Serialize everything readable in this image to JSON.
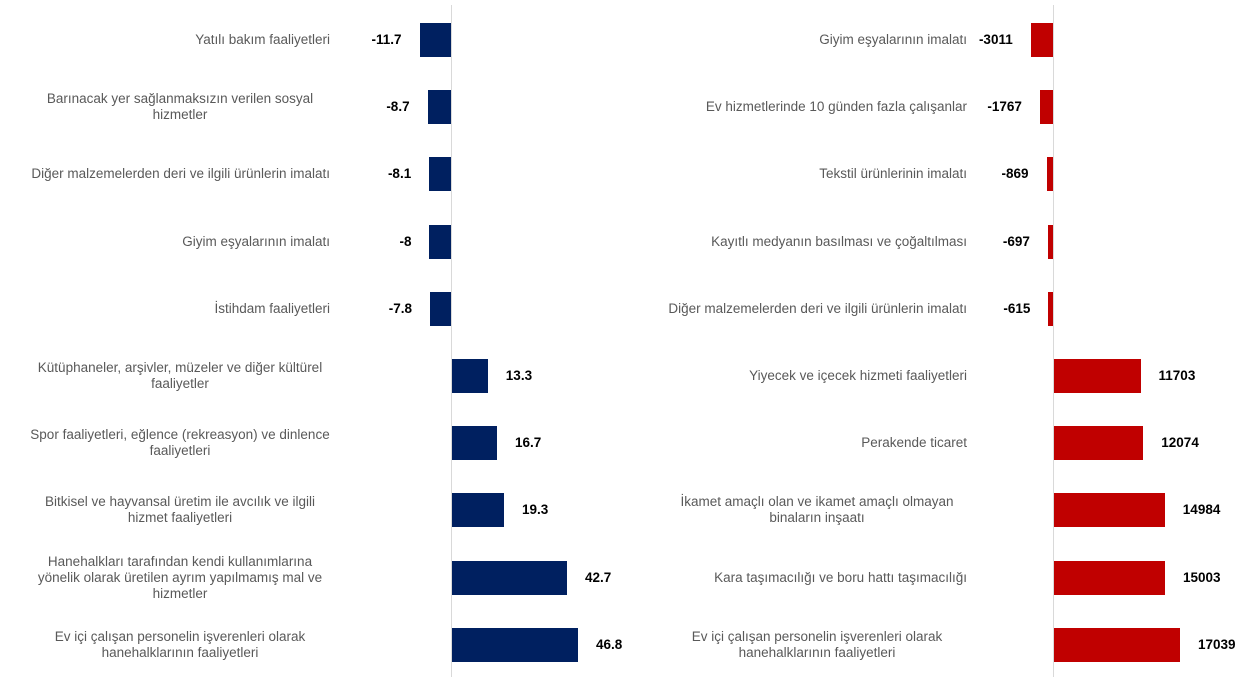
{
  "chart_data": [
    {
      "type": "bar",
      "orientation": "horizontal",
      "color": "#002060",
      "categories": [
        "Yatılı bakım faaliyetleri",
        "Barınacak yer sağlanmaksızın verilen sosyal hizmetler",
        "Diğer malzemelerden deri ve ilgili ürünlerin imalatı",
        "Giyim eşyalarının imalatı",
        "İstihdam faaliyetleri",
        "Kütüphaneler, arşivler, müzeler ve diğer kültürel faaliyetler",
        "Spor faaliyetleri, eğlence (rekreasyon) ve dinlence faaliyetleri",
        "Bitkisel ve hayvansal üretim ile avcılık ve ilgili hizmet faaliyetleri",
        "Hanehalkları tarafından kendi kullanımlarına yönelik olarak üretilen ayrım yapılmamış mal ve hizmetler",
        "Ev içi çalışan personelin işverenleri olarak hanehalklarının faaliyetleri"
      ],
      "values": [
        -11.7,
        -8.7,
        -8.1,
        -8,
        -7.8,
        13.3,
        16.7,
        19.3,
        42.7,
        46.8
      ]
    },
    {
      "type": "bar",
      "orientation": "horizontal",
      "color": "#c00000",
      "categories": [
        "Giyim eşyalarının imalatı",
        "Ev hizmetlerinde 10 günden fazla çalışanlar",
        "Tekstil ürünlerinin imalatı",
        "Kayıtlı medyanın basılması ve çoğaltılması",
        "Diğer malzemelerden deri ve ilgili ürünlerin imalatı",
        "Yiyecek ve içecek hizmeti faaliyetleri",
        "Perakende ticaret",
        "İkamet amaçlı olan ve ikamet amaçlı olmayan binaların inşaatı",
        "Kara taşımacılığı ve boru hattı taşımacılığı",
        "Ev içi çalışan personelin işverenleri olarak hanehalklarının faaliyetleri"
      ],
      "values": [
        -3011,
        -1767,
        -869,
        -697,
        -615,
        11703,
        12074,
        14984,
        15003,
        17039
      ]
    }
  ]
}
